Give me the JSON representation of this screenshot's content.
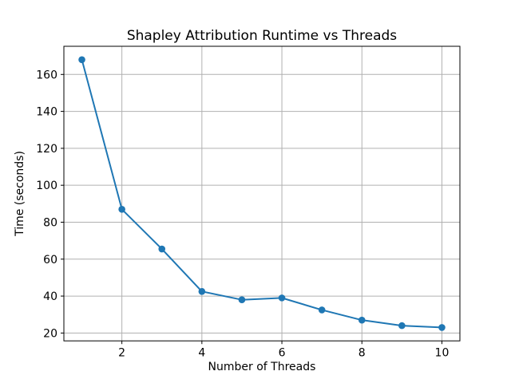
{
  "figure": {
    "background": "#ffffff"
  },
  "chart_data": {
    "type": "line",
    "title": "Shapley Attribution Runtime vs Threads",
    "xlabel": "Number of Threads",
    "ylabel": "Time (seconds)",
    "x": [
      1,
      2,
      3,
      4,
      5,
      6,
      7,
      8,
      9,
      10
    ],
    "y": [
      168,
      87,
      65.5,
      42.5,
      38,
      39,
      32.5,
      27,
      24,
      23
    ],
    "xticks": [
      2,
      4,
      6,
      8,
      10
    ],
    "xtick_labels": [
      "2",
      "4",
      "6",
      "8",
      "10"
    ],
    "yticks": [
      20,
      40,
      60,
      80,
      100,
      120,
      140,
      160
    ],
    "ytick_labels": [
      "20",
      "40",
      "60",
      "80",
      "100",
      "120",
      "140",
      "160"
    ],
    "xlim": [
      0.55,
      10.45
    ],
    "ylim": [
      15.75,
      175.25
    ],
    "grid": true,
    "legend": false,
    "line_color": "#1f77b4",
    "marker": "circle",
    "marker_color": "#1f77b4",
    "grid_color": "#b0b0b0",
    "spine_color": "#000000",
    "text_color": "#000000"
  }
}
